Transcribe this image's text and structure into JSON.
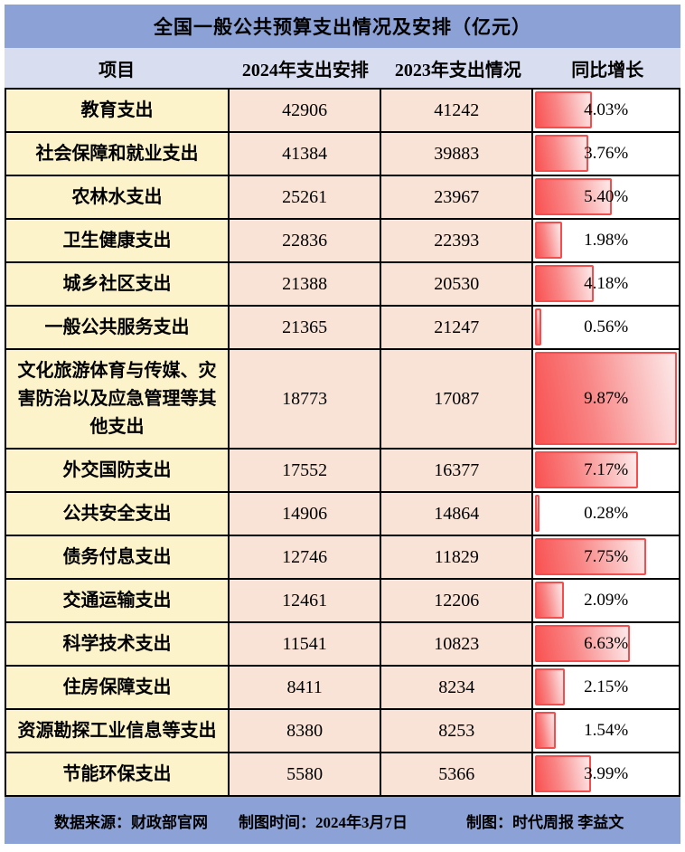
{
  "title": "全国一般公共预算支出情况及安排（亿元）",
  "header": {
    "col_item": "项目",
    "col_2024": "2024年支出安排",
    "col_2023": "2023年支出情况",
    "col_growth": "同比增长"
  },
  "chart_data": {
    "type": "table",
    "title": "全国一般公共预算支出情况及安排（亿元）",
    "columns": [
      "项目",
      "2024年支出安排",
      "2023年支出情况",
      "同比增长"
    ],
    "bar_axis_max": 10,
    "bar_column": "同比增长",
    "rows": [
      {
        "item": "教育支出",
        "budget_2024": "42906",
        "actual_2023": "41242",
        "yoy_growth_pct": 4.03,
        "growth_label": "4.03%"
      },
      {
        "item": "社会保障和就业支出",
        "budget_2024": "41384",
        "actual_2023": "39883",
        "yoy_growth_pct": 3.76,
        "growth_label": "3.76%"
      },
      {
        "item": "农林水支出",
        "budget_2024": "25261",
        "actual_2023": "23967",
        "yoy_growth_pct": 5.4,
        "growth_label": "5.40%"
      },
      {
        "item": "卫生健康支出",
        "budget_2024": "22836",
        "actual_2023": "22393",
        "yoy_growth_pct": 1.98,
        "growth_label": "1.98%"
      },
      {
        "item": "城乡社区支出",
        "budget_2024": "21388",
        "actual_2023": "20530",
        "yoy_growth_pct": 4.18,
        "growth_label": "4.18%"
      },
      {
        "item": "一般公共服务支出",
        "budget_2024": "21365",
        "actual_2023": "21247",
        "yoy_growth_pct": 0.56,
        "growth_label": "0.56%"
      },
      {
        "item": "文化旅游体育与传媒、灾害防治以及应急管理等其他支出",
        "budget_2024": "18773",
        "actual_2023": "17087",
        "yoy_growth_pct": 9.87,
        "growth_label": "9.87%"
      },
      {
        "item": "外交国防支出",
        "budget_2024": "17552",
        "actual_2023": "16377",
        "yoy_growth_pct": 7.17,
        "growth_label": "7.17%"
      },
      {
        "item": "公共安全支出",
        "budget_2024": "14906",
        "actual_2023": "14864",
        "yoy_growth_pct": 0.28,
        "growth_label": "0.28%"
      },
      {
        "item": "债务付息支出",
        "budget_2024": "12746",
        "actual_2023": "11829",
        "yoy_growth_pct": 7.75,
        "growth_label": "7.75%"
      },
      {
        "item": "交通运输支出",
        "budget_2024": "12461",
        "actual_2023": "12206",
        "yoy_growth_pct": 2.09,
        "growth_label": "2.09%"
      },
      {
        "item": "科学技术支出",
        "budget_2024": "11541",
        "actual_2023": "10823",
        "yoy_growth_pct": 6.63,
        "growth_label": "6.63%"
      },
      {
        "item": "住房保障支出",
        "budget_2024": "8411",
        "actual_2023": "8234",
        "yoy_growth_pct": 2.15,
        "growth_label": "2.15%"
      },
      {
        "item": "资源勘探工业信息等支出",
        "budget_2024": "8380",
        "actual_2023": "8253",
        "yoy_growth_pct": 1.54,
        "growth_label": "1.54%"
      },
      {
        "item": "节能环保支出",
        "budget_2024": "5580",
        "actual_2023": "5366",
        "yoy_growth_pct": 3.99,
        "growth_label": "3.99%"
      }
    ]
  },
  "footer": {
    "source": "数据来源：财政部官网",
    "date": "制图时间：2024年3月7日",
    "credit": "制图：时代周报 李益文"
  },
  "colors": {
    "title_bar": "#8CA1D5",
    "header_row": "#D8DEF0",
    "item_column": "#FCF3CB",
    "value_columns": "#F9E3D6",
    "bar_fill_start": "#F95252",
    "bar_fill_end": "#FDEAEA",
    "bar_border": "#F34D4D",
    "footer_bar": "#8CA1D5",
    "grid_border": "#000000"
  }
}
